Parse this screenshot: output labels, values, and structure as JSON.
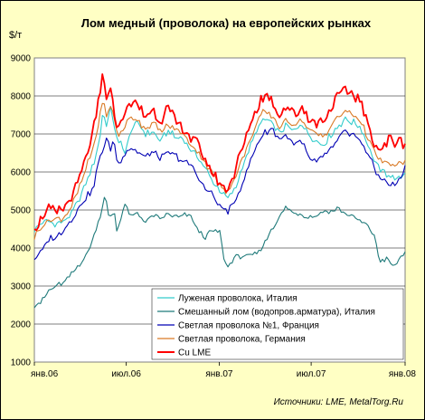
{
  "chart_data": {
    "type": "line",
    "title": "Лом медный (проволока) на европейских рынках",
    "unit_label": "$/т",
    "ylim": [
      1000,
      9000
    ],
    "y_ticks": [
      "1000",
      "2000",
      "3000",
      "4000",
      "5000",
      "6000",
      "7000",
      "8000",
      "9000"
    ],
    "x_ticks": [
      {
        "label": "янв.06",
        "t": 0
      },
      {
        "label": "июл.06",
        "t": 0.2479
      },
      {
        "label": "янв.07",
        "t": 0.4986
      },
      {
        "label": "июл.07",
        "t": 0.7466
      },
      {
        "label": "янв.08",
        "t": 1
      }
    ],
    "grid": true,
    "legend_position": "bottom-right",
    "source": "Источники: LME, MetalTorg.Ru",
    "series": [
      {
        "name": "Луженая проволока, Италия",
        "color": "#33cccc",
        "values": [
          [
            0,
            4500
          ],
          [
            0.02,
            4650
          ],
          [
            0.04,
            4700
          ],
          [
            0.06,
            4650
          ],
          [
            0.08,
            4700
          ],
          [
            0.1,
            4900
          ],
          [
            0.12,
            5250
          ],
          [
            0.14,
            5700
          ],
          [
            0.16,
            6200
          ],
          [
            0.175,
            6800
          ],
          [
            0.185,
            7600
          ],
          [
            0.195,
            7200
          ],
          [
            0.205,
            7700
          ],
          [
            0.215,
            7300
          ],
          [
            0.225,
            6700
          ],
          [
            0.235,
            6800
          ],
          [
            0.245,
            6500
          ],
          [
            0.26,
            7100
          ],
          [
            0.28,
            7300
          ],
          [
            0.3,
            7000
          ],
          [
            0.32,
            7050
          ],
          [
            0.34,
            6800
          ],
          [
            0.36,
            7100
          ],
          [
            0.38,
            6900
          ],
          [
            0.4,
            6900
          ],
          [
            0.42,
            6600
          ],
          [
            0.44,
            6400
          ],
          [
            0.46,
            6100
          ],
          [
            0.48,
            5800
          ],
          [
            0.5,
            5500
          ],
          [
            0.52,
            5300
          ],
          [
            0.54,
            5500
          ],
          [
            0.56,
            6100
          ],
          [
            0.58,
            6600
          ],
          [
            0.6,
            7100
          ],
          [
            0.62,
            7400
          ],
          [
            0.64,
            7300
          ],
          [
            0.66,
            7000
          ],
          [
            0.68,
            7200
          ],
          [
            0.7,
            7100
          ],
          [
            0.72,
            7300
          ],
          [
            0.74,
            7000
          ],
          [
            0.76,
            6800
          ],
          [
            0.78,
            6700
          ],
          [
            0.8,
            7000
          ],
          [
            0.82,
            7200
          ],
          [
            0.84,
            7400
          ],
          [
            0.86,
            7300
          ],
          [
            0.88,
            7200
          ],
          [
            0.9,
            6700
          ],
          [
            0.92,
            6200
          ],
          [
            0.94,
            6000
          ],
          [
            0.96,
            5900
          ],
          [
            0.98,
            5800
          ],
          [
            1.0,
            6000
          ]
        ]
      },
      {
        "name": "Смешанный лом (водопров.арматура), Италия",
        "color": "#1f7a7a",
        "values": [
          [
            0,
            2500
          ],
          [
            0.02,
            2600
          ],
          [
            0.04,
            2900
          ],
          [
            0.06,
            3000
          ],
          [
            0.08,
            3100
          ],
          [
            0.1,
            3300
          ],
          [
            0.12,
            3550
          ],
          [
            0.14,
            3800
          ],
          [
            0.16,
            4300
          ],
          [
            0.18,
            4900
          ],
          [
            0.19,
            5450
          ],
          [
            0.2,
            4850
          ],
          [
            0.21,
            4800
          ],
          [
            0.215,
            5200
          ],
          [
            0.22,
            4400
          ],
          [
            0.23,
            4700
          ],
          [
            0.245,
            5150
          ],
          [
            0.26,
            4800
          ],
          [
            0.28,
            4900
          ],
          [
            0.3,
            4700
          ],
          [
            0.32,
            4850
          ],
          [
            0.34,
            4750
          ],
          [
            0.36,
            4900
          ],
          [
            0.38,
            4800
          ],
          [
            0.4,
            4850
          ],
          [
            0.42,
            4850
          ],
          [
            0.44,
            4500
          ],
          [
            0.46,
            4300
          ],
          [
            0.48,
            4450
          ],
          [
            0.5,
            4450
          ],
          [
            0.51,
            3750
          ],
          [
            0.52,
            3500
          ],
          [
            0.54,
            3750
          ],
          [
            0.56,
            3800
          ],
          [
            0.58,
            3750
          ],
          [
            0.6,
            3850
          ],
          [
            0.62,
            4100
          ],
          [
            0.64,
            4500
          ],
          [
            0.66,
            4800
          ],
          [
            0.68,
            5100
          ],
          [
            0.7,
            4900
          ],
          [
            0.72,
            4900
          ],
          [
            0.74,
            4800
          ],
          [
            0.76,
            4850
          ],
          [
            0.78,
            4950
          ],
          [
            0.8,
            4950
          ],
          [
            0.82,
            5050
          ],
          [
            0.84,
            4900
          ],
          [
            0.86,
            4800
          ],
          [
            0.88,
            4700
          ],
          [
            0.9,
            4600
          ],
          [
            0.92,
            4250
          ],
          [
            0.93,
            3650
          ],
          [
            0.95,
            3700
          ],
          [
            0.97,
            3500
          ],
          [
            0.98,
            3650
          ],
          [
            1.0,
            3900
          ]
        ]
      },
      {
        "name": "Светлая проволока №1, Франция",
        "color": "#0000b3",
        "values": [
          [
            0,
            3750
          ],
          [
            0.02,
            3900
          ],
          [
            0.04,
            4250
          ],
          [
            0.06,
            4300
          ],
          [
            0.08,
            4500
          ],
          [
            0.1,
            4750
          ],
          [
            0.12,
            5050
          ],
          [
            0.14,
            5350
          ],
          [
            0.16,
            5600
          ],
          [
            0.175,
            6350
          ],
          [
            0.185,
            6600
          ],
          [
            0.195,
            6900
          ],
          [
            0.205,
            6550
          ],
          [
            0.215,
            6850
          ],
          [
            0.225,
            6150
          ],
          [
            0.24,
            6450
          ],
          [
            0.26,
            6650
          ],
          [
            0.28,
            6500
          ],
          [
            0.3,
            6400
          ],
          [
            0.32,
            6500
          ],
          [
            0.34,
            6350
          ],
          [
            0.36,
            6500
          ],
          [
            0.38,
            6450
          ],
          [
            0.4,
            6300
          ],
          [
            0.42,
            6200
          ],
          [
            0.44,
            5900
          ],
          [
            0.46,
            5550
          ],
          [
            0.48,
            5400
          ],
          [
            0.5,
            5100
          ],
          [
            0.52,
            4950
          ],
          [
            0.54,
            5200
          ],
          [
            0.56,
            5650
          ],
          [
            0.58,
            6200
          ],
          [
            0.6,
            6700
          ],
          [
            0.62,
            7050
          ],
          [
            0.64,
            7150
          ],
          [
            0.66,
            6900
          ],
          [
            0.68,
            6950
          ],
          [
            0.7,
            6700
          ],
          [
            0.72,
            6800
          ],
          [
            0.74,
            6400
          ],
          [
            0.76,
            6250
          ],
          [
            0.78,
            6400
          ],
          [
            0.8,
            6600
          ],
          [
            0.82,
            6850
          ],
          [
            0.84,
            7050
          ],
          [
            0.86,
            7000
          ],
          [
            0.88,
            6800
          ],
          [
            0.9,
            6500
          ],
          [
            0.92,
            6000
          ],
          [
            0.94,
            5800
          ],
          [
            0.96,
            5650
          ],
          [
            0.98,
            5700
          ],
          [
            1.0,
            6100
          ]
        ]
      },
      {
        "name": "Светлая проволока, Германия",
        "color": "#d97a26",
        "values": [
          [
            0,
            4300
          ],
          [
            0.02,
            4550
          ],
          [
            0.04,
            4750
          ],
          [
            0.06,
            4750
          ],
          [
            0.08,
            4800
          ],
          [
            0.1,
            5100
          ],
          [
            0.12,
            5550
          ],
          [
            0.14,
            6100
          ],
          [
            0.16,
            6700
          ],
          [
            0.175,
            7350
          ],
          [
            0.185,
            7950
          ],
          [
            0.195,
            7400
          ],
          [
            0.205,
            7800
          ],
          [
            0.215,
            7500
          ],
          [
            0.225,
            6900
          ],
          [
            0.24,
            7150
          ],
          [
            0.26,
            7450
          ],
          [
            0.28,
            7350
          ],
          [
            0.3,
            7150
          ],
          [
            0.32,
            7300
          ],
          [
            0.34,
            7050
          ],
          [
            0.36,
            7250
          ],
          [
            0.38,
            7100
          ],
          [
            0.4,
            7000
          ],
          [
            0.42,
            6750
          ],
          [
            0.44,
            6550
          ],
          [
            0.46,
            6250
          ],
          [
            0.48,
            5950
          ],
          [
            0.5,
            5650
          ],
          [
            0.52,
            5500
          ],
          [
            0.54,
            5800
          ],
          [
            0.56,
            6300
          ],
          [
            0.58,
            6800
          ],
          [
            0.6,
            7300
          ],
          [
            0.62,
            7600
          ],
          [
            0.64,
            7500
          ],
          [
            0.66,
            7200
          ],
          [
            0.68,
            7350
          ],
          [
            0.7,
            7250
          ],
          [
            0.72,
            7400
          ],
          [
            0.74,
            7150
          ],
          [
            0.76,
            6950
          ],
          [
            0.78,
            6950
          ],
          [
            0.8,
            7200
          ],
          [
            0.82,
            7450
          ],
          [
            0.84,
            7600
          ],
          [
            0.86,
            7500
          ],
          [
            0.88,
            7350
          ],
          [
            0.9,
            6900
          ],
          [
            0.92,
            6450
          ],
          [
            0.94,
            6250
          ],
          [
            0.96,
            6200
          ],
          [
            0.98,
            6150
          ],
          [
            1.0,
            6300
          ]
        ]
      },
      {
        "name": "Cu LME",
        "color": "#ff0000",
        "values": [
          [
            0,
            4550
          ],
          [
            0.02,
            4800
          ],
          [
            0.04,
            5000
          ],
          [
            0.06,
            4900
          ],
          [
            0.08,
            5000
          ],
          [
            0.1,
            5300
          ],
          [
            0.12,
            5800
          ],
          [
            0.14,
            6400
          ],
          [
            0.16,
            7100
          ],
          [
            0.175,
            7900
          ],
          [
            0.185,
            8650
          ],
          [
            0.195,
            7900
          ],
          [
            0.205,
            8200
          ],
          [
            0.215,
            7600
          ],
          [
            0.225,
            7100
          ],
          [
            0.24,
            7500
          ],
          [
            0.26,
            7850
          ],
          [
            0.28,
            7750
          ],
          [
            0.3,
            7450
          ],
          [
            0.32,
            7650
          ],
          [
            0.34,
            7350
          ],
          [
            0.36,
            7700
          ],
          [
            0.38,
            7300
          ],
          [
            0.4,
            7150
          ],
          [
            0.42,
            6900
          ],
          [
            0.44,
            6750
          ],
          [
            0.46,
            6300
          ],
          [
            0.48,
            6000
          ],
          [
            0.5,
            5700
          ],
          [
            0.52,
            5550
          ],
          [
            0.54,
            5950
          ],
          [
            0.56,
            6600
          ],
          [
            0.58,
            7200
          ],
          [
            0.6,
            7700
          ],
          [
            0.62,
            8050
          ],
          [
            0.64,
            7950
          ],
          [
            0.66,
            7500
          ],
          [
            0.68,
            7700
          ],
          [
            0.7,
            7500
          ],
          [
            0.72,
            7700
          ],
          [
            0.74,
            7450
          ],
          [
            0.76,
            7250
          ],
          [
            0.78,
            7350
          ],
          [
            0.8,
            7700
          ],
          [
            0.82,
            8000
          ],
          [
            0.84,
            8150
          ],
          [
            0.86,
            8050
          ],
          [
            0.88,
            7850
          ],
          [
            0.9,
            7200
          ],
          [
            0.92,
            6750
          ],
          [
            0.94,
            6600
          ],
          [
            0.96,
            6900
          ],
          [
            0.98,
            6750
          ],
          [
            1.0,
            6800
          ]
        ]
      }
    ]
  }
}
